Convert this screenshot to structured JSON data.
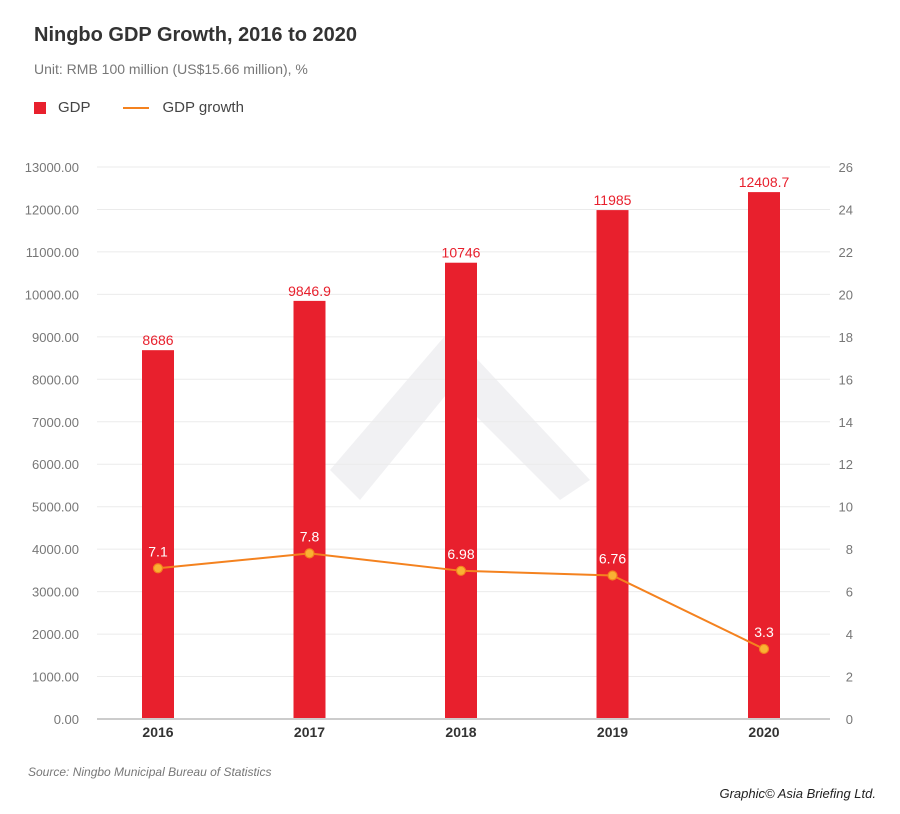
{
  "chart_data": {
    "type": "bar+line",
    "title": "Ningbo GDP Growth, 2016 to 2020",
    "subtitle": "Unit: RMB 100 million (US$15.66 million), %",
    "categories": [
      "2016",
      "2017",
      "2018",
      "2019",
      "2020"
    ],
    "series": [
      {
        "name": "GDP",
        "type": "bar",
        "axis": "left",
        "values": [
          8686,
          9846.9,
          10746,
          11985,
          12408.7
        ],
        "labels": [
          "8686",
          "9846.9",
          "10746",
          "11985",
          "12408.7"
        ],
        "color": "#e8202d"
      },
      {
        "name": "GDP growth",
        "type": "line",
        "axis": "right",
        "values": [
          7.1,
          7.8,
          6.98,
          6.76,
          3.3
        ],
        "labels": [
          "7.1",
          "7.8",
          "6.98",
          "6.76",
          "3.3"
        ],
        "color": "#f4821f"
      }
    ],
    "left_axis": {
      "ylim": [
        0,
        13000
      ],
      "ticks": [
        "0.00",
        "1000.00",
        "2000.00",
        "3000.00",
        "4000.00",
        "5000.00",
        "6000.00",
        "7000.00",
        "8000.00",
        "9000.00",
        "10000.00",
        "11000.00",
        "12000.00",
        "13000.00"
      ]
    },
    "right_axis": {
      "ylim": [
        0,
        26
      ],
      "ticks": [
        "0",
        "2",
        "4",
        "6",
        "8",
        "10",
        "12",
        "14",
        "16",
        "18",
        "20",
        "22",
        "24",
        "26"
      ]
    },
    "grid": true,
    "legend": "top-left"
  },
  "source": "Source: Ningbo Municipal Bureau of Statistics",
  "credit": "Graphic© Asia Briefing Ltd."
}
